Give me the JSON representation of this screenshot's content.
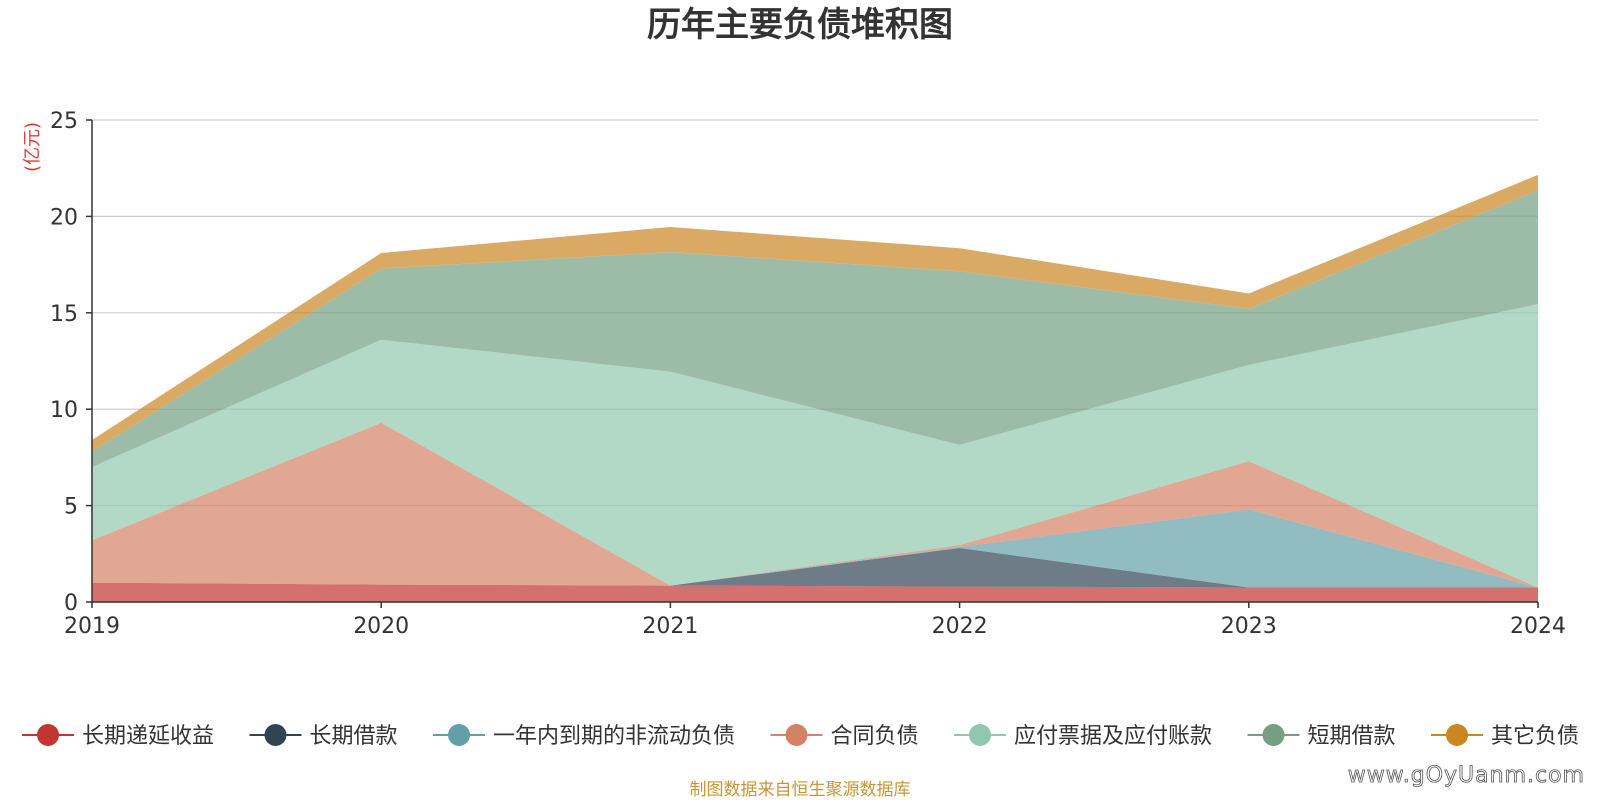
{
  "chart_data": {
    "type": "area",
    "stacked": true,
    "title": "历年主要负债堆积图",
    "unit_label": "(亿元)",
    "x": [
      "2019",
      "2020",
      "2021",
      "2022",
      "2023",
      "2024"
    ],
    "ylim": [
      0,
      25
    ],
    "yticks": [
      0,
      5,
      10,
      15,
      20,
      25
    ],
    "grid": true,
    "legend_position": "bottom",
    "series": [
      {
        "name": "长期递延收益",
        "color": "#c23531",
        "values": [
          1.0,
          0.9,
          0.85,
          0.8,
          0.75,
          0.75
        ]
      },
      {
        "name": "长期借款",
        "color": "#2f4554",
        "values": [
          0.0,
          0.0,
          0.0,
          2.0,
          0.0,
          0.0
        ]
      },
      {
        "name": "一年内到期的非流动负债",
        "color": "#61a0a8",
        "values": [
          0.0,
          0.0,
          0.0,
          0.05,
          4.05,
          0.0
        ]
      },
      {
        "name": "合同负债",
        "color": "#d48265",
        "values": [
          2.2,
          8.4,
          0.0,
          0.1,
          2.5,
          0.0
        ]
      },
      {
        "name": "应付票据及应付账款",
        "color": "#91c7ae",
        "values": [
          3.8,
          4.3,
          11.1,
          5.2,
          5.0,
          14.7
        ]
      },
      {
        "name": "短期借款",
        "color": "#749f83",
        "values": [
          0.8,
          3.7,
          6.2,
          9.0,
          2.9,
          5.9
        ]
      },
      {
        "name": "其它负债",
        "color": "#ca8622",
        "values": [
          0.6,
          0.8,
          1.3,
          1.2,
          0.8,
          0.8
        ]
      }
    ],
    "source": "制图数据来自恒生聚源数据库",
    "watermark": "www.gOyUanm.com"
  }
}
